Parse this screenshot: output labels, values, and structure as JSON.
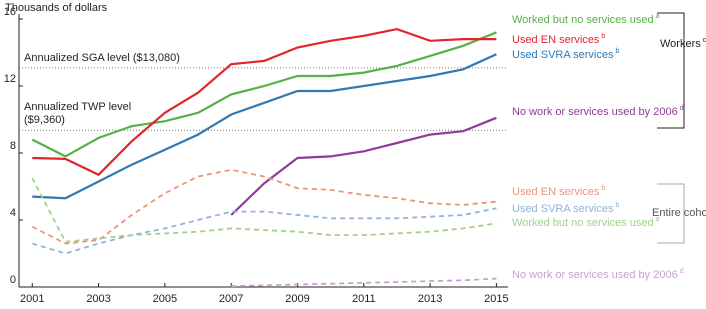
{
  "chart_data": {
    "type": "line",
    "y_axis_label": "Thousands of dollars",
    "x": [
      2001,
      2002,
      2003,
      2004,
      2005,
      2006,
      2007,
      2008,
      2009,
      2010,
      2011,
      2012,
      2013,
      2014,
      2015
    ],
    "xlim": [
      2000.6,
      2015.35
    ],
    "xticks": [
      2001,
      2003,
      2005,
      2007,
      2009,
      2011,
      2013,
      2015
    ],
    "ylim": [
      0,
      16.3
    ],
    "yticks": [
      0,
      4,
      8,
      12,
      16
    ],
    "reference_lines": [
      {
        "value": 13.08,
        "lines": [
          "Annualized SGA level ($13,080)"
        ]
      },
      {
        "value": 9.36,
        "lines": [
          "Annualized TWP level",
          "($9,360)"
        ]
      }
    ],
    "groups": [
      {
        "label": "Workers",
        "note": "c"
      },
      {
        "label": "Entire cohort"
      }
    ],
    "series": [
      {
        "name": "Worked but no services used",
        "note": "a",
        "group": 0,
        "dashed": false,
        "color": "#55b146",
        "values": [
          8.8,
          7.8,
          8.9,
          9.6,
          9.9,
          10.4,
          11.5,
          12.0,
          12.6,
          12.6,
          12.8,
          13.2,
          13.8,
          14.4,
          15.2
        ]
      },
      {
        "name": "Used EN services",
        "note": "b",
        "group": 0,
        "dashed": false,
        "color": "#e0262b",
        "values": [
          7.7,
          7.65,
          6.7,
          8.7,
          10.4,
          11.6,
          13.3,
          13.5,
          14.3,
          14.7,
          15.0,
          15.4,
          14.7,
          14.8,
          14.8
        ]
      },
      {
        "name": "Used SVRA services",
        "note": "b",
        "group": 0,
        "dashed": false,
        "color": "#2f7ab6",
        "values": [
          5.4,
          5.3,
          6.3,
          7.3,
          8.2,
          9.1,
          10.3,
          11.0,
          11.7,
          11.7,
          12.0,
          12.3,
          12.6,
          13.0,
          13.9
        ]
      },
      {
        "name": "No work or services used by 2006",
        "note": "d",
        "group": 0,
        "dashed": false,
        "color": "#8e3d96",
        "values": [
          null,
          null,
          null,
          null,
          null,
          null,
          4.3,
          6.2,
          7.7,
          7.8,
          8.1,
          8.6,
          9.1,
          9.3,
          10.1
        ]
      },
      {
        "name": "Used EN services",
        "note": "b",
        "group": 1,
        "dashed": true,
        "color": "#f0927a",
        "values": [
          3.6,
          2.6,
          2.8,
          4.3,
          5.6,
          6.6,
          7.0,
          6.6,
          5.9,
          5.8,
          5.5,
          5.3,
          5.0,
          4.9,
          5.1
        ]
      },
      {
        "name": "Used SVRA services",
        "note": "b",
        "group": 1,
        "dashed": true,
        "color": "#8fb3d9",
        "values": [
          2.6,
          2.0,
          2.6,
          3.1,
          3.5,
          4.0,
          4.5,
          4.5,
          4.3,
          4.1,
          4.1,
          4.1,
          4.2,
          4.3,
          4.7
        ]
      },
      {
        "name": "Worked but no services used",
        "note": "a",
        "group": 1,
        "dashed": true,
        "color": "#9fd18a",
        "values": [
          6.5,
          2.7,
          2.9,
          3.1,
          3.2,
          3.3,
          3.5,
          3.4,
          3.3,
          3.1,
          3.1,
          3.2,
          3.3,
          3.5,
          3.8
        ]
      },
      {
        "name": "No work or services used by 2006",
        "note": "d",
        "group": 1,
        "dashed": true,
        "color": "#c89fd0",
        "values": [
          null,
          null,
          null,
          null,
          null,
          null,
          0.05,
          0.1,
          0.15,
          0.2,
          0.25,
          0.3,
          0.35,
          0.4,
          0.5
        ]
      }
    ]
  }
}
